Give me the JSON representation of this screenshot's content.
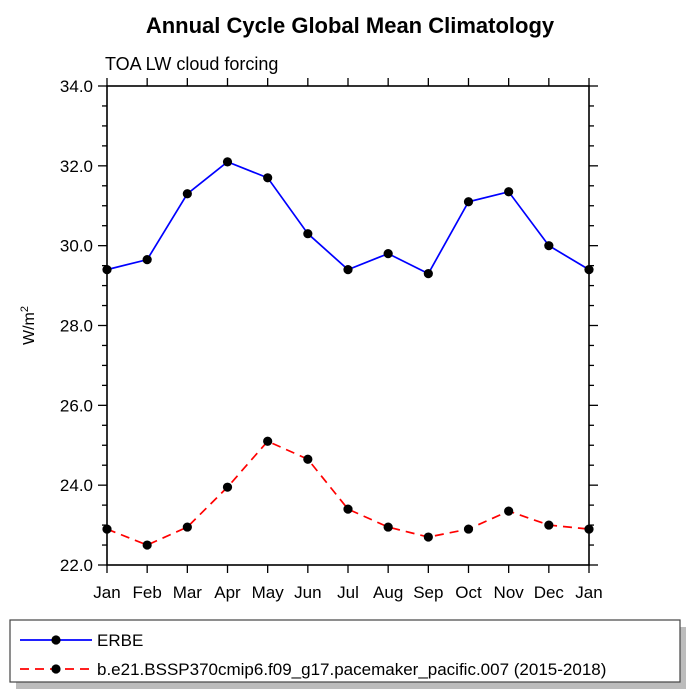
{
  "title": "Annual Cycle Global Mean Climatology",
  "subtitle": "TOA LW cloud forcing",
  "chart_data": {
    "type": "line",
    "categories": [
      "Jan",
      "Feb",
      "Mar",
      "Apr",
      "May",
      "Jun",
      "Jul",
      "Aug",
      "Sep",
      "Oct",
      "Nov",
      "Dec",
      "Jan"
    ],
    "series": [
      {
        "name": "ERBE",
        "color": "#0000ff",
        "line_style": "solid",
        "marker": "filled-circle",
        "marker_color": "#000000",
        "values": [
          29.4,
          29.65,
          31.3,
          32.1,
          31.7,
          30.3,
          29.4,
          29.8,
          29.3,
          31.1,
          31.35,
          30.0,
          29.4
        ]
      },
      {
        "name": "b.e21.BSSP370cmip6.f09_g17.pacemaker_pacific.007 (2015-2018)",
        "color": "#ff0000",
        "line_style": "dashed",
        "marker": "filled-circle",
        "marker_color": "#000000",
        "values": [
          22.9,
          22.5,
          22.95,
          23.95,
          25.1,
          24.65,
          23.4,
          22.95,
          22.7,
          22.9,
          23.35,
          23.0,
          22.9
        ]
      }
    ],
    "xlabel": "",
    "ylabel": "W/m²",
    "ylim": [
      22.0,
      34.0
    ],
    "ytick_step": 2.0,
    "yminor_step": 0.5,
    "ytick_labels": [
      "22.0",
      "24.0",
      "26.0",
      "28.0",
      "30.0",
      "32.0",
      "34.0"
    ],
    "grid": false,
    "legend_position": "bottom-box",
    "axis_color": "#000000",
    "legend_border_color": "#444444",
    "legend_shadow_color": "#bcbcbc",
    "background_color": "#ffffff"
  }
}
